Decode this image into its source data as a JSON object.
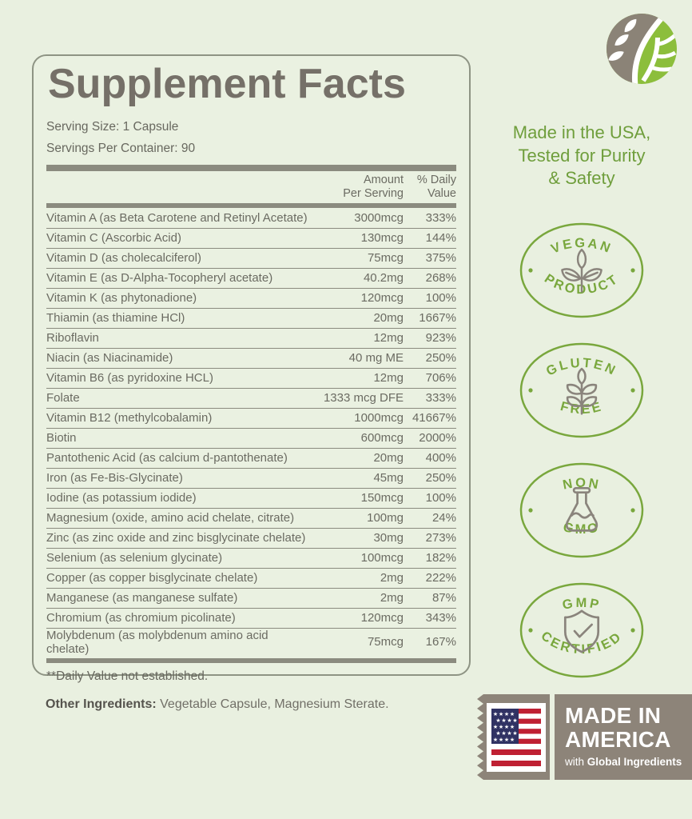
{
  "colors": {
    "background": "#e9f0e0",
    "accent_green": "#79a73d",
    "logo_green": "#8cbe3c",
    "warm_gray": "#8d8479",
    "bar_gray": "#8b8b7f",
    "text_gray": "#6b6b62",
    "flag_red": "#bf2033",
    "flag_navy": "#303263"
  },
  "panel": {
    "title": "Supplement Facts",
    "serving_size": "Serving Size: 1 Capsule",
    "servings_per_container": "Servings Per Container: 90",
    "columns": {
      "amount_line1": "Amount",
      "amount_line2": "Per Serving",
      "daily_line1": "% Daily",
      "daily_line2": "Value"
    },
    "rows": [
      {
        "name": "Vitamin A (as Beta Carotene and Retinyl Acetate)",
        "amount": "3000mcg",
        "daily_value": "333%"
      },
      {
        "name": "Vitamin C (Ascorbic Acid)",
        "amount": "130mcg",
        "daily_value": "144%"
      },
      {
        "name": "Vitamin D (as cholecalciferol)",
        "amount": "75mcg",
        "daily_value": "375%"
      },
      {
        "name": "Vitamin E (as D-Alpha-Tocopheryl acetate)",
        "amount": "40.2mg",
        "daily_value": "268%"
      },
      {
        "name": "Vitamin K (as phytonadione)",
        "amount": "120mcg",
        "daily_value": "100%"
      },
      {
        "name": "Thiamin (as thiamine HCl)",
        "amount": "20mg",
        "daily_value": "1667%"
      },
      {
        "name": "Riboflavin",
        "amount": "12mg",
        "daily_value": "923%"
      },
      {
        "name": "Niacin (as Niacinamide)",
        "amount": "40 mg ME",
        "daily_value": "250%"
      },
      {
        "name": "Vitamin B6 (as pyridoxine HCL)",
        "amount": "12mg",
        "daily_value": "706%"
      },
      {
        "name": "Folate",
        "amount": "1333 mcg DFE",
        "daily_value": "333%"
      },
      {
        "name": "Vitamin B12 (methylcobalamin)",
        "amount": "1000mcg",
        "daily_value": "41667%"
      },
      {
        "name": "Biotin",
        "amount": "600mcg",
        "daily_value": "2000%"
      },
      {
        "name": "Pantothenic Acid (as calcium d-pantothenate)",
        "amount": "20mg",
        "daily_value": "400%"
      },
      {
        "name": "Iron (as Fe-Bis-Glycinate)",
        "amount": "45mg",
        "daily_value": "250%"
      },
      {
        "name": "Iodine (as potassium iodide)",
        "amount": "150mcg",
        "daily_value": "100%"
      },
      {
        "name": "Magnesium (oxide, amino acid chelate, citrate)",
        "amount": "100mg",
        "daily_value": "24%"
      },
      {
        "name": "Zinc (as zinc oxide and zinc bisglycinate chelate)",
        "amount": "30mg",
        "daily_value": "273%"
      },
      {
        "name": "Selenium (as selenium glycinate)",
        "amount": "100mcg",
        "daily_value": "182%"
      },
      {
        "name": "Copper (as copper bisglycinate chelate)",
        "amount": "2mg",
        "daily_value": "222%"
      },
      {
        "name": "Manganese (as manganese sulfate)",
        "amount": "2mg",
        "daily_value": "87%"
      },
      {
        "name": "Chromium (as chromium picolinate)",
        "amount": "120mcg",
        "daily_value": "343%"
      },
      {
        "name": "Molybdenum (as molybdenum amino acid chelate)",
        "amount": "75mcg",
        "daily_value": "167%"
      }
    ],
    "footnote": "**Daily Value not established."
  },
  "other_ingredients": {
    "label": "Other Ingredients:",
    "value": " Vegetable Capsule, Magnesium Sterate."
  },
  "sidebar": {
    "logo_icon": "leaf-circle-logo",
    "tagline_line1": "Made in the USA,",
    "tagline_line2": "Tested for Purity",
    "tagline_line3": "& Safety",
    "badges": [
      {
        "top": "VEGAN",
        "bottom": "PRODUCT",
        "icon": "plant-sprig-icon"
      },
      {
        "top": "GLUTEN",
        "bottom": "FREE",
        "icon": "wheat-stalk-icon"
      },
      {
        "top": "NON",
        "bottom": "GMO",
        "icon": "flask-icon"
      },
      {
        "top": "GMP",
        "bottom": "CERTIFIED",
        "icon": "shield-check-icon"
      }
    ],
    "made_in": {
      "line1": "MADE IN",
      "line2": "AMERICA",
      "sub_regular": "with ",
      "sub_bold": "Global Ingredients",
      "flag_icon": "us-flag"
    }
  }
}
